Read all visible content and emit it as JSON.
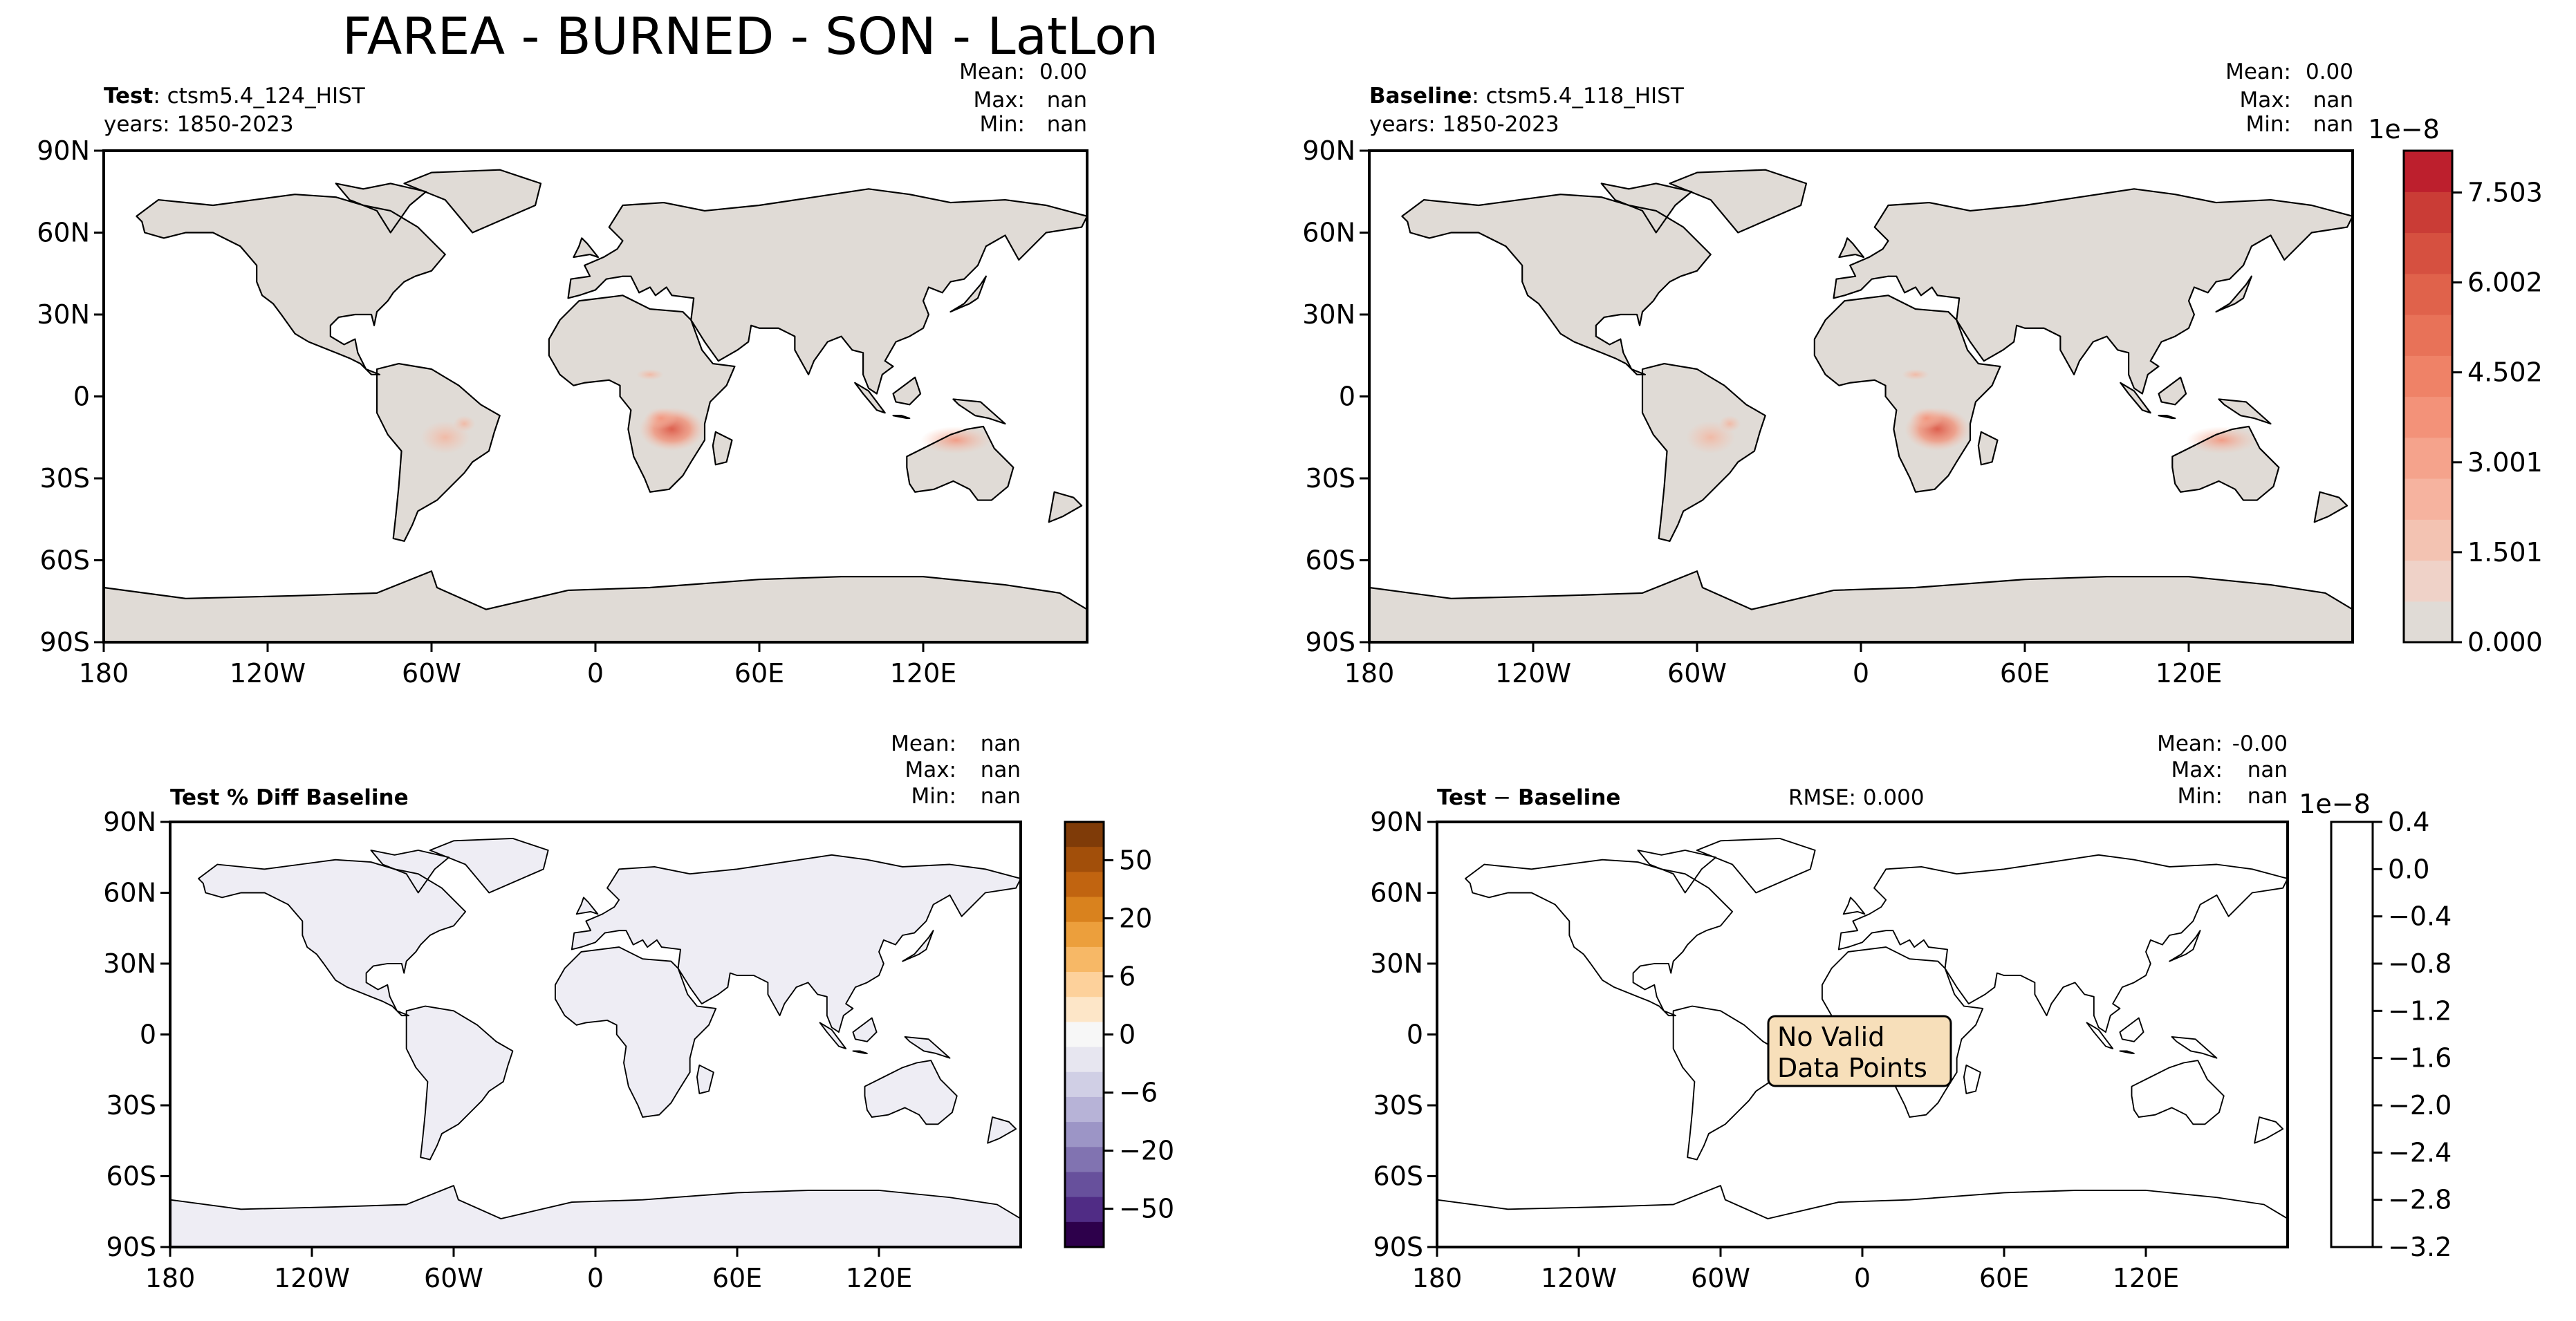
{
  "figure_title": "FAREA - BURNED - SON - LatLon",
  "panels": {
    "test": {
      "title_bold": "Test",
      "title_rest": ": ctsm5.4_124_HIST",
      "years": "years: 1850-2023",
      "stats": {
        "mean_label": "Mean:",
        "mean": "0.00",
        "max_label": "Max:",
        "max": "nan",
        "min_label": "Min:",
        "min": "nan"
      }
    },
    "baseline": {
      "title_bold": "Baseline",
      "title_rest": ": ctsm5.4_118_HIST",
      "years": "years: 1850-2023",
      "stats": {
        "mean_label": "Mean:",
        "mean": "0.00",
        "max_label": "Max:",
        "max": "nan",
        "min_label": "Min:",
        "min": "nan"
      }
    },
    "pct_diff": {
      "title_bold": "Test % Diff Baseline",
      "stats": {
        "mean_label": "Mean:",
        "mean": "nan",
        "max_label": "Max:",
        "max": "nan",
        "min_label": "Min:",
        "min": "nan"
      }
    },
    "diff": {
      "title_bold": "Test",
      "title_sep": " − ",
      "title_bold2": "Baseline",
      "rmse": "RMSE: 0.000",
      "stats": {
        "mean_label": "Mean:",
        "mean": "-0.00",
        "max_label": "Max:",
        "max": "nan",
        "min_label": "Min:",
        "min": "nan"
      },
      "no_data_line1": "No Valid",
      "no_data_line2": "Data Points"
    }
  },
  "chart_data": [
    {
      "type": "heatmap",
      "name": "Test",
      "projection": "PlateCarree",
      "xlim": [
        -180,
        180
      ],
      "ylim": [
        -90,
        90
      ],
      "xticks": [
        -180,
        -120,
        -60,
        0,
        60,
        120
      ],
      "xtick_labels": [
        "180",
        "120W",
        "60W",
        "0",
        "60E",
        "120E"
      ],
      "yticks": [
        90,
        60,
        30,
        0,
        -30,
        -60,
        -90
      ],
      "ytick_labels": [
        "90N",
        "60N",
        "30N",
        "0",
        "30S",
        "60S",
        "90S"
      ],
      "hotspots": [
        {
          "region": "Southern Africa",
          "lon": 28,
          "lat": -12,
          "level": 0.9
        },
        {
          "region": "Northern Australia",
          "lon": 132,
          "lat": -16,
          "level": 0.5
        },
        {
          "region": "South America",
          "lon": -55,
          "lat": -15,
          "level": 0.25
        }
      ]
    },
    {
      "type": "heatmap",
      "name": "Baseline",
      "projection": "PlateCarree",
      "xlim": [
        -180,
        180
      ],
      "ylim": [
        -90,
        90
      ],
      "xticks": [
        -180,
        -120,
        -60,
        0,
        60,
        120
      ],
      "xtick_labels": [
        "180",
        "120W",
        "60W",
        "0",
        "60E",
        "120E"
      ],
      "yticks": [
        90,
        60,
        30,
        0,
        -30,
        -60,
        -90
      ],
      "ytick_labels": [
        "90N",
        "60N",
        "30N",
        "0",
        "30S",
        "60S",
        "90S"
      ],
      "colorbar": {
        "exponent_label": "1e−8",
        "range": [
          0,
          8.2
        ],
        "ticks": [
          0.0,
          1.501,
          3.001,
          4.502,
          6.002,
          7.503
        ],
        "tick_labels": [
          "0.000",
          "1.501",
          "3.001",
          "4.502",
          "6.002",
          "7.503"
        ],
        "colors": [
          "#e0dbd6",
          "#efd2c8",
          "#f3c3b2",
          "#f6b39f",
          "#f5a38c",
          "#f39279",
          "#ef8267",
          "#e87258",
          "#e0624b",
          "#d65040",
          "#ca3c36",
          "#bd1f2d"
        ]
      }
    },
    {
      "type": "heatmap",
      "name": "Test % Diff Baseline",
      "projection": "PlateCarree",
      "xlim": [
        -180,
        180
      ],
      "ylim": [
        -90,
        90
      ],
      "xticks": [
        -180,
        -120,
        -60,
        0,
        60,
        120
      ],
      "xtick_labels": [
        "180",
        "120W",
        "60W",
        "0",
        "60E",
        "120E"
      ],
      "yticks": [
        90,
        60,
        30,
        0,
        -30,
        -60,
        -90
      ],
      "ytick_labels": [
        "90N",
        "60N",
        "30N",
        "0",
        "30S",
        "60S",
        "90S"
      ],
      "colorbar": {
        "levels": [
          "−50",
          "−20",
          "−6",
          "0",
          "6",
          "20",
          "50"
        ],
        "tick_labels": [
          "50",
          "20",
          "6",
          "0",
          "−6",
          "−20",
          "−50"
        ],
        "colors": [
          "#7f3b08",
          "#a24f0a",
          "#c16410",
          "#d9821e",
          "#ec9f3c",
          "#f7b866",
          "#fdd19b",
          "#fde6c8",
          "#f7f7f7",
          "#e7e6f0",
          "#d0cfe5",
          "#b7b3d7",
          "#9c95c6",
          "#8173b1",
          "#67509c",
          "#502c85",
          "#2d004b"
        ]
      }
    },
    {
      "type": "heatmap",
      "name": "Test − Baseline",
      "projection": "PlateCarree",
      "xlim": [
        -180,
        180
      ],
      "ylim": [
        -90,
        90
      ],
      "xticks": [
        -180,
        -120,
        -60,
        0,
        60,
        120
      ],
      "xtick_labels": [
        "180",
        "120W",
        "60W",
        "0",
        "60E",
        "120E"
      ],
      "yticks": [
        90,
        60,
        30,
        0,
        -30,
        -60,
        -90
      ],
      "ytick_labels": [
        "90N",
        "60N",
        "30N",
        "0",
        "30S",
        "60S",
        "90S"
      ],
      "colorbar": {
        "exponent_label": "1e−8",
        "range": [
          -3.2,
          0.4
        ],
        "ticks": [
          0.4,
          0.0,
          -0.4,
          -0.8,
          -1.2,
          -1.6,
          -2.0,
          -2.4,
          -2.8,
          -3.2
        ],
        "tick_labels": [
          "0.4",
          "0.0",
          "−0.4",
          "−0.8",
          "−1.2",
          "−1.6",
          "−2.0",
          "−2.4",
          "−2.8",
          "−3.2"
        ]
      }
    }
  ]
}
